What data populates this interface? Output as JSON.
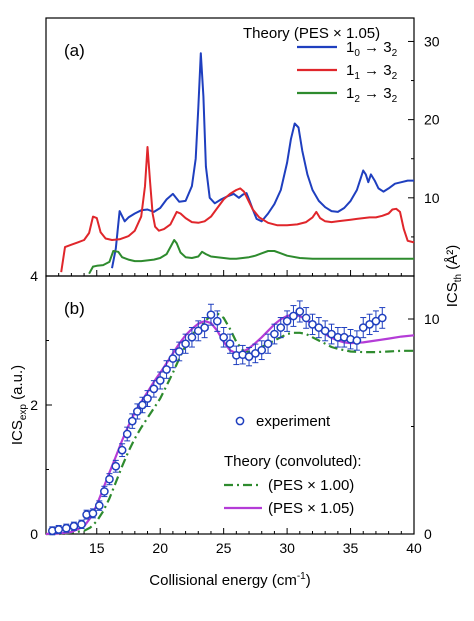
{
  "chart_data": [
    {
      "panel": "(a)",
      "type": "line",
      "legend_title": "Theory (PES × 1.05)",
      "legend_placement": "top-right",
      "x_range": [
        11,
        40
      ],
      "right_ylim": [
        0,
        33
      ],
      "right_yticks": [
        "10",
        "20",
        "30"
      ],
      "right_ylabel_main": "ICS",
      "right_ylabel_sub": "th",
      "right_ylabel_unit": " (Å²)",
      "series": [
        {
          "name": "1₀ → 3₂",
          "name_main_a": "1",
          "name_sub_a": "0",
          "name_arrow": " → 3",
          "name_sub_b": "2",
          "color": "#1f3fbf",
          "x": [
            16.2,
            16.5,
            16.8,
            17.2,
            17.5,
            18.0,
            18.5,
            19.0,
            19.5,
            20.0,
            20.5,
            21.0,
            21.5,
            22.0,
            22.5,
            22.8,
            23.0,
            23.2,
            23.4,
            23.6,
            23.9,
            24.3,
            24.8,
            25.3,
            25.8,
            26.2,
            26.5,
            26.8,
            27.0,
            27.3,
            27.6,
            28.0,
            28.5,
            29.0,
            29.5,
            30.0,
            30.3,
            30.6,
            30.9,
            31.2,
            31.6,
            32.0,
            32.5,
            33.0,
            33.5,
            34.0,
            34.5,
            35.0,
            35.5,
            35.8,
            36.0,
            36.2,
            36.4,
            36.6,
            36.9,
            37.2,
            37.6,
            38.0,
            38.5,
            39.0,
            39.5,
            40.0
          ],
          "y": [
            1.0,
            3.5,
            8.3,
            7.0,
            7.5,
            8.0,
            8.4,
            8.5,
            8.2,
            8.7,
            9.8,
            10.5,
            9.5,
            9.6,
            11.5,
            15.0,
            21.5,
            28.5,
            23.0,
            14.0,
            10.0,
            9.3,
            9.8,
            10.2,
            10.5,
            10.0,
            10.4,
            10.6,
            9.8,
            8.5,
            7.3,
            7.0,
            8.0,
            9.2,
            11.0,
            14.5,
            17.5,
            19.5,
            19.0,
            16.0,
            13.0,
            11.0,
            9.6,
            8.8,
            8.3,
            8.2,
            8.7,
            9.6,
            11.0,
            12.5,
            13.5,
            13.0,
            12.0,
            13.0,
            12.2,
            11.2,
            10.8,
            11.2,
            11.8,
            12.0,
            12.2,
            12.2
          ]
        },
        {
          "name": "1₁ → 3₂",
          "name_main_a": "1",
          "name_sub_a": "1",
          "name_arrow": " → 3",
          "name_sub_b": "2",
          "color": "#e0262b",
          "x": [
            12.2,
            12.5,
            13.0,
            13.5,
            14.0,
            14.4,
            14.7,
            15.0,
            15.3,
            15.7,
            16.2,
            16.8,
            17.5,
            18.0,
            18.5,
            18.8,
            19.0,
            19.2,
            19.4,
            19.6,
            19.9,
            20.3,
            20.8,
            21.3,
            21.6,
            22.0,
            22.5,
            23.0,
            23.5,
            24.0,
            24.5,
            25.0,
            25.5,
            26.0,
            26.3,
            26.6,
            26.9,
            27.3,
            27.8,
            28.5,
            29.2,
            30.0,
            30.8,
            31.5,
            32.0,
            32.3,
            32.6,
            33.0,
            33.5,
            34.0,
            34.5,
            35.0,
            35.5,
            36.0,
            36.5,
            37.0,
            37.5,
            38.0,
            38.3,
            38.6,
            38.9,
            39.2,
            39.5,
            40.0
          ],
          "y": [
            0.5,
            3.7,
            4.0,
            4.3,
            4.6,
            5.5,
            7.6,
            7.4,
            5.6,
            4.8,
            4.6,
            4.7,
            5.1,
            5.8,
            7.6,
            11.5,
            16.5,
            12.0,
            8.0,
            6.3,
            5.8,
            6.0,
            6.6,
            8.2,
            8.0,
            7.4,
            6.9,
            6.8,
            7.0,
            7.6,
            8.7,
            9.8,
            10.5,
            11.0,
            11.2,
            10.8,
            9.8,
            8.5,
            7.5,
            6.8,
            6.5,
            6.5,
            6.6,
            6.9,
            7.5,
            8.2,
            7.4,
            7.0,
            6.9,
            7.0,
            7.1,
            7.2,
            7.3,
            7.4,
            7.5,
            7.5,
            7.7,
            8.0,
            8.5,
            8.6,
            8.2,
            6.0,
            4.5,
            4.3
          ]
        },
        {
          "name": "1₂ → 3₂",
          "name_main_a": "1",
          "name_sub_a": "2",
          "name_arrow": " → 3",
          "name_sub_b": "2",
          "color": "#2e8b2e",
          "x": [
            14.4,
            14.7,
            15.0,
            15.5,
            16.0,
            16.3,
            16.7,
            17.0,
            17.5,
            18.0,
            18.5,
            19.0,
            19.5,
            20.0,
            20.5,
            20.8,
            21.1,
            21.3,
            21.6,
            22.0,
            22.5,
            23.0,
            23.3,
            23.6,
            24.0,
            24.5,
            25.0,
            25.5,
            26.0,
            26.5,
            27.0,
            27.5,
            28.0,
            28.5,
            29.0,
            29.5,
            30.0,
            31.0,
            32.0,
            33.0,
            34.0,
            35.0,
            36.0,
            37.0,
            38.0,
            39.0,
            40.0
          ],
          "y": [
            0.3,
            1.2,
            1.3,
            1.4,
            1.8,
            3.2,
            3.1,
            2.4,
            2.1,
            1.9,
            1.9,
            2.0,
            2.1,
            2.3,
            2.8,
            3.7,
            4.6,
            4.2,
            3.0,
            2.4,
            2.3,
            2.5,
            3.1,
            2.8,
            2.5,
            2.4,
            2.3,
            2.2,
            2.2,
            2.3,
            2.4,
            2.6,
            2.9,
            3.2,
            3.2,
            2.9,
            2.6,
            2.3,
            2.2,
            2.2,
            2.2,
            2.2,
            2.2,
            2.2,
            2.2,
            2.2,
            2.2
          ]
        }
      ]
    },
    {
      "panel": "(b)",
      "type": "line",
      "x_range": [
        11,
        40
      ],
      "xticks": [
        "15",
        "20",
        "25",
        "30",
        "35",
        "40"
      ],
      "xlabel": "Collisional energy (cm⁻¹)",
      "xlabel_main": "Collisional energy (cm",
      "xlabel_sup": "-1",
      "xlabel_end": ")",
      "ylim": [
        0,
        4
      ],
      "yticks": [
        "0",
        "2",
        "4"
      ],
      "ylabel_main": "ICS",
      "ylabel_sub": "exp",
      "ylabel_unit": " (a.u.)",
      "right_ylim": [
        0,
        12
      ],
      "right_yticks": [
        "0",
        "10"
      ],
      "legend_experiment": "experiment",
      "legend_theory_title": "Theory (convoluted):",
      "series": [
        {
          "name": "experiment",
          "kind": "scatter",
          "color": "#1f3fbf",
          "x": [
            11.5,
            12.0,
            12.6,
            13.2,
            13.8,
            14.2,
            14.7,
            15.2,
            15.6,
            16.0,
            16.5,
            17.0,
            17.4,
            17.8,
            18.2,
            18.6,
            19.0,
            19.5,
            20.0,
            20.5,
            21.0,
            21.5,
            22.0,
            22.5,
            23.0,
            23.5,
            24.0,
            24.5,
            25.0,
            25.5,
            26.0,
            26.5,
            27.0,
            27.5,
            28.0,
            28.5,
            29.0,
            29.5,
            30.0,
            30.5,
            31.0,
            31.5,
            32.0,
            32.5,
            33.0,
            33.5,
            34.0,
            34.5,
            35.0,
            35.5,
            36.0,
            36.5,
            37.0,
            37.5
          ],
          "y": [
            0.05,
            0.07,
            0.09,
            0.12,
            0.15,
            0.3,
            0.32,
            0.44,
            0.66,
            0.85,
            1.05,
            1.3,
            1.55,
            1.75,
            1.9,
            2.0,
            2.1,
            2.25,
            2.38,
            2.55,
            2.72,
            2.83,
            2.95,
            3.05,
            3.15,
            3.2,
            3.4,
            3.3,
            3.05,
            2.95,
            2.77,
            2.78,
            2.75,
            2.8,
            2.85,
            2.95,
            3.1,
            3.2,
            3.3,
            3.38,
            3.45,
            3.35,
            3.25,
            3.2,
            3.15,
            3.1,
            3.05,
            3.05,
            3.02,
            3.0,
            3.2,
            3.25,
            3.3,
            3.35
          ]
        },
        {
          "name": "(PES × 1.00)",
          "kind": "line",
          "dash": "dashdot",
          "color": "#2e8b2e",
          "x": [
            11.0,
            12.0,
            13.0,
            14.0,
            14.5,
            15.0,
            15.5,
            16.0,
            16.5,
            17.0,
            17.5,
            18.0,
            18.5,
            19.0,
            19.5,
            20.0,
            20.5,
            21.0,
            21.5,
            22.0,
            22.5,
            23.0,
            23.5,
            24.0,
            24.5,
            25.0,
            25.5,
            26.0,
            26.5,
            27.0,
            27.5,
            28.0,
            28.5,
            29.0,
            29.5,
            30.0,
            30.5,
            31.0,
            31.5,
            32.0,
            32.5,
            33.0,
            33.5,
            34.0,
            35.0,
            36.0,
            37.0,
            38.0,
            39.0,
            40.0
          ],
          "y": [
            0.0,
            0.0,
            0.02,
            0.05,
            0.1,
            0.2,
            0.35,
            0.55,
            0.8,
            1.05,
            1.28,
            1.48,
            1.65,
            1.8,
            1.95,
            2.1,
            2.3,
            2.5,
            2.72,
            2.92,
            3.08,
            3.2,
            3.3,
            3.38,
            3.42,
            3.35,
            3.18,
            2.98,
            2.85,
            2.82,
            2.85,
            2.9,
            2.95,
            3.0,
            3.05,
            3.1,
            3.12,
            3.12,
            3.1,
            3.05,
            3.0,
            2.95,
            2.9,
            2.87,
            2.83,
            2.82,
            2.82,
            2.83,
            2.84,
            2.84
          ]
        },
        {
          "name": "(PES × 1.05)",
          "kind": "line",
          "dash": "solid",
          "color": "#b43cd7",
          "x": [
            11.0,
            12.0,
            13.0,
            14.0,
            14.5,
            15.0,
            15.5,
            16.0,
            16.5,
            17.0,
            17.5,
            18.0,
            18.5,
            19.0,
            19.5,
            20.0,
            20.5,
            21.0,
            21.5,
            22.0,
            22.5,
            23.0,
            23.5,
            24.0,
            24.5,
            25.0,
            25.5,
            26.0,
            26.5,
            27.0,
            27.5,
            28.0,
            28.5,
            29.0,
            29.5,
            30.0,
            30.5,
            31.0,
            31.5,
            32.0,
            32.5,
            33.0,
            33.5,
            34.0,
            34.5,
            35.0,
            36.0,
            37.0,
            38.0,
            39.0,
            40.0
          ],
          "y": [
            0.0,
            0.01,
            0.03,
            0.12,
            0.25,
            0.45,
            0.7,
            0.95,
            1.2,
            1.45,
            1.68,
            1.88,
            2.05,
            2.2,
            2.36,
            2.5,
            2.65,
            2.8,
            2.95,
            3.08,
            3.18,
            3.26,
            3.3,
            3.27,
            3.15,
            2.98,
            2.85,
            2.8,
            2.82,
            2.88,
            2.96,
            3.05,
            3.15,
            3.25,
            3.33,
            3.38,
            3.4,
            3.38,
            3.32,
            3.25,
            3.18,
            3.1,
            3.04,
            3.0,
            2.97,
            2.96,
            2.97,
            3.0,
            3.03,
            3.06,
            3.08
          ]
        }
      ]
    }
  ]
}
